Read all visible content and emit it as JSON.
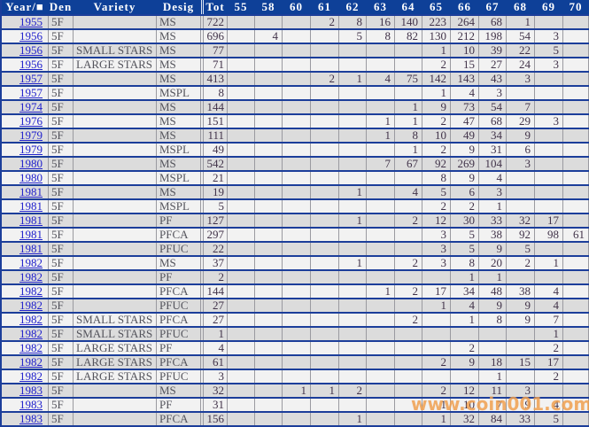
{
  "table": {
    "headers": {
      "year": "Year/■",
      "den": "Den",
      "variety": "Variety",
      "desig": "Desig",
      "tot": "Tot"
    },
    "grade_columns": [
      "55",
      "58",
      "60",
      "61",
      "62",
      "63",
      "64",
      "65",
      "66",
      "67",
      "68",
      "69",
      "70"
    ],
    "rows": [
      {
        "year": "1955",
        "den": "5F",
        "variety": "",
        "desig": "MS",
        "tot": "722",
        "grades": {
          "61": "2",
          "62": "8",
          "63": "16",
          "64": "140",
          "65": "223",
          "66": "264",
          "67": "68",
          "68": "1"
        }
      },
      {
        "year": "1956",
        "den": "5F",
        "variety": "",
        "desig": "MS",
        "tot": "696",
        "grades": {
          "58": "4",
          "62": "5",
          "63": "8",
          "64": "82",
          "65": "130",
          "66": "212",
          "67": "198",
          "68": "54",
          "69": "3"
        }
      },
      {
        "year": "1956",
        "den": "5F",
        "variety": "SMALL STARS",
        "desig": "MS",
        "tot": "77",
        "grades": {
          "65": "1",
          "66": "10",
          "67": "39",
          "68": "22",
          "69": "5"
        }
      },
      {
        "year": "1956",
        "den": "5F",
        "variety": "LARGE STARS",
        "desig": "MS",
        "tot": "71",
        "grades": {
          "65": "2",
          "66": "15",
          "67": "27",
          "68": "24",
          "69": "3"
        }
      },
      {
        "year": "1957",
        "den": "5F",
        "variety": "",
        "desig": "MS",
        "tot": "413",
        "grades": {
          "61": "2",
          "62": "1",
          "63": "4",
          "64": "75",
          "65": "142",
          "66": "143",
          "67": "43",
          "68": "3"
        }
      },
      {
        "year": "1957",
        "den": "5F",
        "variety": "",
        "desig": "MSPL",
        "tot": "8",
        "grades": {
          "65": "1",
          "66": "4",
          "67": "3"
        }
      },
      {
        "year": "1974",
        "den": "5F",
        "variety": "",
        "desig": "MS",
        "tot": "144",
        "grades": {
          "64": "1",
          "65": "9",
          "66": "73",
          "67": "54",
          "68": "7"
        }
      },
      {
        "year": "1976",
        "den": "5F",
        "variety": "",
        "desig": "MS",
        "tot": "151",
        "grades": {
          "63": "1",
          "64": "1",
          "65": "2",
          "66": "47",
          "67": "68",
          "68": "29",
          "69": "3"
        }
      },
      {
        "year": "1979",
        "den": "5F",
        "variety": "",
        "desig": "MS",
        "tot": "111",
        "grades": {
          "63": "1",
          "64": "8",
          "65": "10",
          "66": "49",
          "67": "34",
          "68": "9"
        }
      },
      {
        "year": "1979",
        "den": "5F",
        "variety": "",
        "desig": "MSPL",
        "tot": "49",
        "grades": {
          "64": "1",
          "65": "2",
          "66": "9",
          "67": "31",
          "68": "6"
        }
      },
      {
        "year": "1980",
        "den": "5F",
        "variety": "",
        "desig": "MS",
        "tot": "542",
        "grades": {
          "63": "7",
          "64": "67",
          "65": "92",
          "66": "269",
          "67": "104",
          "68": "3"
        }
      },
      {
        "year": "1980",
        "den": "5F",
        "variety": "",
        "desig": "MSPL",
        "tot": "21",
        "grades": {
          "65": "8",
          "66": "9",
          "67": "4"
        }
      },
      {
        "year": "1981",
        "den": "5F",
        "variety": "",
        "desig": "MS",
        "tot": "19",
        "grades": {
          "62": "1",
          "64": "4",
          "65": "5",
          "66": "6",
          "67": "3"
        }
      },
      {
        "year": "1981",
        "den": "5F",
        "variety": "",
        "desig": "MSPL",
        "tot": "5",
        "grades": {
          "65": "2",
          "66": "2",
          "67": "1"
        }
      },
      {
        "year": "1981",
        "den": "5F",
        "variety": "",
        "desig": "PF",
        "tot": "127",
        "grades": {
          "62": "1",
          "64": "2",
          "65": "12",
          "66": "30",
          "67": "33",
          "68": "32",
          "69": "17"
        }
      },
      {
        "year": "1981",
        "den": "5F",
        "variety": "",
        "desig": "PFCA",
        "tot": "297",
        "grades": {
          "65": "3",
          "66": "5",
          "67": "38",
          "68": "92",
          "69": "98",
          "70": "61"
        }
      },
      {
        "year": "1981",
        "den": "5F",
        "variety": "",
        "desig": "PFUC",
        "tot": "22",
        "grades": {
          "65": "3",
          "66": "5",
          "67": "9",
          "68": "5"
        }
      },
      {
        "year": "1982",
        "den": "5F",
        "variety": "",
        "desig": "MS",
        "tot": "37",
        "grades": {
          "62": "1",
          "64": "2",
          "65": "3",
          "66": "8",
          "67": "20",
          "68": "2",
          "69": "1"
        }
      },
      {
        "year": "1982",
        "den": "5F",
        "variety": "",
        "desig": "PF",
        "tot": "2",
        "grades": {
          "66": "1",
          "67": "1"
        }
      },
      {
        "year": "1982",
        "den": "5F",
        "variety": "",
        "desig": "PFCA",
        "tot": "144",
        "grades": {
          "63": "1",
          "64": "2",
          "65": "17",
          "66": "34",
          "67": "48",
          "68": "38",
          "69": "4"
        }
      },
      {
        "year": "1982",
        "den": "5F",
        "variety": "",
        "desig": "PFUC",
        "tot": "27",
        "grades": {
          "65": "1",
          "66": "4",
          "67": "9",
          "68": "9",
          "69": "4"
        }
      },
      {
        "year": "1982",
        "den": "5F",
        "variety": "SMALL STARS",
        "desig": "PFCA",
        "tot": "27",
        "grades": {
          "64": "2",
          "66": "1",
          "67": "8",
          "68": "9",
          "69": "7"
        }
      },
      {
        "year": "1982",
        "den": "5F",
        "variety": "SMALL STARS",
        "desig": "PFUC",
        "tot": "1",
        "grades": {
          "69": "1"
        }
      },
      {
        "year": "1982",
        "den": "5F",
        "variety": "LARGE STARS",
        "desig": "PF",
        "tot": "4",
        "grades": {
          "66": "2",
          "69": "2"
        }
      },
      {
        "year": "1982",
        "den": "5F",
        "variety": "LARGE STARS",
        "desig": "PFCA",
        "tot": "61",
        "grades": {
          "65": "2",
          "66": "9",
          "67": "18",
          "68": "15",
          "69": "17"
        }
      },
      {
        "year": "1982",
        "den": "5F",
        "variety": "LARGE STARS",
        "desig": "PFUC",
        "tot": "3",
        "grades": {
          "67": "1",
          "69": "2"
        }
      },
      {
        "year": "1983",
        "den": "5F",
        "variety": "",
        "desig": "MS",
        "tot": "32",
        "grades": {
          "60": "1",
          "61": "1",
          "62": "2",
          "65": "2",
          "66": "12",
          "67": "11",
          "68": "3"
        }
      },
      {
        "year": "1983",
        "den": "5F",
        "variety": "",
        "desig": "PF",
        "tot": "31",
        "grades": {
          "65": "1",
          "66": "10",
          "67": "7",
          "68": "9",
          "69": "4"
        }
      },
      {
        "year": "1983",
        "den": "5F",
        "variety": "",
        "desig": "PFCA",
        "tot": "156",
        "grades": {
          "62": "1",
          "65": "1",
          "66": "32",
          "67": "84",
          "68": "33",
          "69": "5"
        }
      }
    ]
  },
  "watermark": {
    "text": "www.coin001.com",
    "color": "#f0a050"
  },
  "colors": {
    "header_bg": "#0e4098",
    "row_separator": "#1c3e9a",
    "row_odd_bg": "#dcdcdc",
    "row_even_bg": "#f2f2f2",
    "cell_border": "#9a9aa0",
    "year_link": "#2222cc",
    "number_text": "#413349",
    "label_text": "#54545c"
  }
}
